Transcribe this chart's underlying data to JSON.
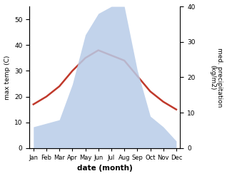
{
  "months": [
    "Jan",
    "Feb",
    "Mar",
    "Apr",
    "May",
    "Jun",
    "Jul",
    "Aug",
    "Sep",
    "Oct",
    "Nov",
    "Dec"
  ],
  "temperature": [
    17,
    20,
    24,
    30,
    35,
    38,
    36,
    34,
    28,
    22,
    18,
    15
  ],
  "precipitation": [
    6,
    7,
    8,
    18,
    32,
    38,
    40,
    40,
    22,
    9,
    6,
    2
  ],
  "temp_color": "#c0392b",
  "precip_color": "#b8cce8",
  "title": "",
  "xlabel": "date (month)",
  "ylabel_left": "max temp (C)",
  "ylabel_right": "med. precipitation\n(kg/m2)",
  "ylim_left": [
    0,
    55
  ],
  "ylim_right": [
    0,
    40
  ],
  "yticks_left": [
    0,
    10,
    20,
    30,
    40,
    50
  ],
  "yticks_right": [
    0,
    10,
    20,
    30,
    40
  ],
  "background_color": "#ffffff",
  "figsize": [
    3.18,
    2.47
  ],
  "dpi": 100
}
